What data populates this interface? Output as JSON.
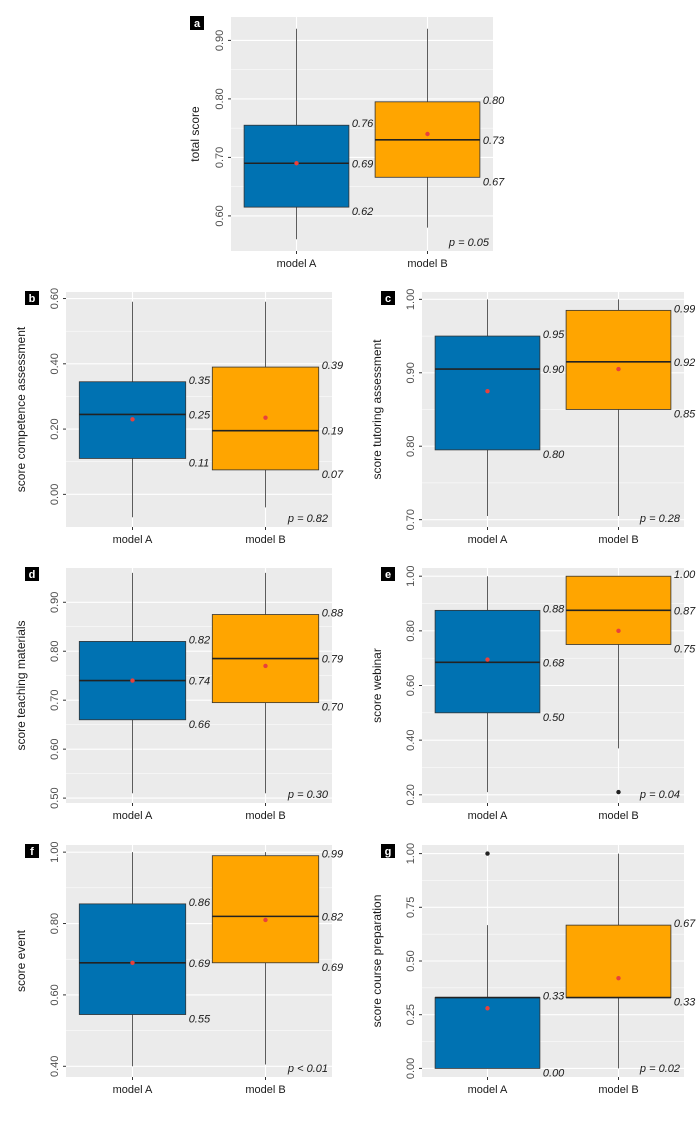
{
  "colors": {
    "model_a": "#0072b2",
    "model_b": "#ffa500",
    "panel_bg": "#ebebeb",
    "grid": "#ffffff",
    "mean_dot": "#e8413c",
    "outline": "#333333"
  },
  "chart_data": [
    {
      "panel": "a",
      "type": "box",
      "title": "",
      "ylabel": "total score",
      "xlabel": "",
      "ylim": [
        0.54,
        0.94
      ],
      "yticks": [
        0.6,
        0.7,
        0.8,
        0.9
      ],
      "ytick_labels": [
        "0.60",
        "0.70",
        "0.80",
        "0.90"
      ],
      "categories": [
        "model A",
        "model B"
      ],
      "boxes": [
        {
          "name": "model A",
          "whisker_low": 0.56,
          "q1": 0.615,
          "median": 0.69,
          "q3": 0.755,
          "whisker_high": 0.92,
          "mean": 0.69,
          "outliers": [],
          "labels": {
            "q1": "0.62",
            "median": "0.69",
            "q3": "0.76"
          }
        },
        {
          "name": "model B",
          "whisker_low": 0.58,
          "q1": 0.666,
          "median": 0.73,
          "q3": 0.795,
          "whisker_high": 0.92,
          "mean": 0.74,
          "outliers": [],
          "labels": {
            "q1": "0.67",
            "median": "0.73",
            "q3": "0.80"
          }
        }
      ],
      "annotation": "p = 0.05"
    },
    {
      "panel": "b",
      "type": "box",
      "title": "",
      "ylabel": "score competence assessment",
      "xlabel": "",
      "ylim": [
        -0.1,
        0.62
      ],
      "yticks": [
        0.0,
        0.2,
        0.4,
        0.6
      ],
      "ytick_labels": [
        "0.00",
        "0.20",
        "0.40",
        "0.60"
      ],
      "categories": [
        "model A",
        "model B"
      ],
      "boxes": [
        {
          "name": "model A",
          "whisker_low": -0.07,
          "q1": 0.11,
          "median": 0.245,
          "q3": 0.345,
          "whisker_high": 0.59,
          "mean": 0.23,
          "outliers": [],
          "labels": {
            "q1": "0.11",
            "median": "0.25",
            "q3": "0.35"
          }
        },
        {
          "name": "model B",
          "whisker_low": -0.04,
          "q1": 0.075,
          "median": 0.195,
          "q3": 0.39,
          "whisker_high": 0.59,
          "mean": 0.235,
          "outliers": [],
          "labels": {
            "q1": "0.07",
            "median": "0.19",
            "q3": "0.39"
          }
        }
      ],
      "annotation": "p = 0.82"
    },
    {
      "panel": "c",
      "type": "box",
      "title": "",
      "ylabel": "score tutoring assessment",
      "xlabel": "",
      "ylim": [
        0.69,
        1.01
      ],
      "yticks": [
        0.7,
        0.8,
        0.9,
        1.0
      ],
      "ytick_labels": [
        "0.70",
        "0.80",
        "0.90",
        "1.00"
      ],
      "categories": [
        "model A",
        "model B"
      ],
      "boxes": [
        {
          "name": "model A",
          "whisker_low": 0.705,
          "q1": 0.795,
          "median": 0.905,
          "q3": 0.95,
          "whisker_high": 1.0,
          "mean": 0.875,
          "outliers": [],
          "labels": {
            "q1": "0.80",
            "median": "0.90",
            "q3": "0.95"
          }
        },
        {
          "name": "model B",
          "whisker_low": 0.705,
          "q1": 0.85,
          "median": 0.915,
          "q3": 0.985,
          "whisker_high": 1.0,
          "mean": 0.905,
          "outliers": [],
          "labels": {
            "q1": "0.85",
            "median": "0.92",
            "q3": "0.99"
          }
        }
      ],
      "annotation": "p = 0.28"
    },
    {
      "panel": "d",
      "type": "box",
      "title": "",
      "ylabel": "score teaching materials",
      "xlabel": "",
      "ylim": [
        0.49,
        0.97
      ],
      "yticks": [
        0.5,
        0.6,
        0.7,
        0.8,
        0.9
      ],
      "ytick_labels": [
        "0.50",
        "0.60",
        "0.70",
        "0.80",
        "0.90"
      ],
      "categories": [
        "model A",
        "model B"
      ],
      "boxes": [
        {
          "name": "model A",
          "whisker_low": 0.51,
          "q1": 0.66,
          "median": 0.74,
          "q3": 0.82,
          "whisker_high": 0.96,
          "mean": 0.74,
          "outliers": [],
          "labels": {
            "q1": "0.66",
            "median": "0.74",
            "q3": "0.82"
          }
        },
        {
          "name": "model B",
          "whisker_low": 0.51,
          "q1": 0.695,
          "median": 0.785,
          "q3": 0.875,
          "whisker_high": 0.96,
          "mean": 0.77,
          "outliers": [],
          "labels": {
            "q1": "0.70",
            "median": "0.79",
            "q3": "0.88"
          }
        }
      ],
      "annotation": "p = 0.30"
    },
    {
      "panel": "e",
      "type": "box",
      "title": "",
      "ylabel": "score webinar",
      "xlabel": "",
      "ylim": [
        0.17,
        1.03
      ],
      "yticks": [
        0.2,
        0.4,
        0.6,
        0.8,
        1.0
      ],
      "ytick_labels": [
        "0.20",
        "0.40",
        "0.60",
        "0.80",
        "1.00"
      ],
      "categories": [
        "model A",
        "model B"
      ],
      "boxes": [
        {
          "name": "model A",
          "whisker_low": 0.21,
          "q1": 0.5,
          "median": 0.685,
          "q3": 0.875,
          "whisker_high": 1.0,
          "mean": 0.695,
          "outliers": [],
          "labels": {
            "q1": "0.50",
            "median": "0.68",
            "q3": "0.88"
          }
        },
        {
          "name": "model B",
          "whisker_low": 0.37,
          "q1": 0.75,
          "median": 0.875,
          "q3": 1.0,
          "whisker_high": 1.0,
          "mean": 0.8,
          "outliers": [
            0.21
          ],
          "labels": {
            "q1": "0.75",
            "median": "0.87",
            "q3": "1.00"
          }
        }
      ],
      "annotation": "p = 0.04"
    },
    {
      "panel": "f",
      "type": "box",
      "title": "",
      "ylabel": "score event",
      "xlabel": "",
      "ylim": [
        0.37,
        1.02
      ],
      "yticks": [
        0.4,
        0.6,
        0.8,
        1.0
      ],
      "ytick_labels": [
        "0.40",
        "0.60",
        "0.80",
        "1.00"
      ],
      "categories": [
        "model A",
        "model B"
      ],
      "boxes": [
        {
          "name": "model A",
          "whisker_low": 0.4,
          "q1": 0.545,
          "median": 0.69,
          "q3": 0.855,
          "whisker_high": 1.0,
          "mean": 0.69,
          "outliers": [],
          "labels": {
            "q1": "0.55",
            "median": "0.69",
            "q3": "0.86"
          }
        },
        {
          "name": "model B",
          "whisker_low": 0.405,
          "q1": 0.69,
          "median": 0.82,
          "q3": 0.99,
          "whisker_high": 1.0,
          "mean": 0.81,
          "outliers": [],
          "labels": {
            "q1": "0.69",
            "median": "0.82",
            "q3": "0.99"
          }
        }
      ],
      "annotation": "p < 0.01"
    },
    {
      "panel": "g",
      "type": "box",
      "title": "",
      "ylabel": "score course preparation",
      "xlabel": "",
      "ylim": [
        -0.04,
        1.04
      ],
      "yticks": [
        0.0,
        0.25,
        0.5,
        0.75,
        1.0
      ],
      "ytick_labels": [
        "0.00",
        "0.25",
        "0.50",
        "0.75",
        "1.00"
      ],
      "categories": [
        "model A",
        "model B"
      ],
      "boxes": [
        {
          "name": "model A",
          "whisker_low": 0.0,
          "q1": 0.0,
          "median": 0.33,
          "q3": 0.33,
          "whisker_high": 0.667,
          "mean": 0.28,
          "outliers": [
            1.0
          ],
          "labels": {
            "q1": "0.00",
            "median": "",
            "q3": "0.33"
          }
        },
        {
          "name": "model B",
          "whisker_low": 0.0,
          "q1": 0.33,
          "median": 0.33,
          "q3": 0.667,
          "whisker_high": 1.0,
          "mean": 0.42,
          "outliers": [],
          "labels": {
            "q1": "0.33",
            "median": "",
            "q3": "0.67"
          }
        }
      ],
      "annotation": "p = 0.02"
    }
  ]
}
